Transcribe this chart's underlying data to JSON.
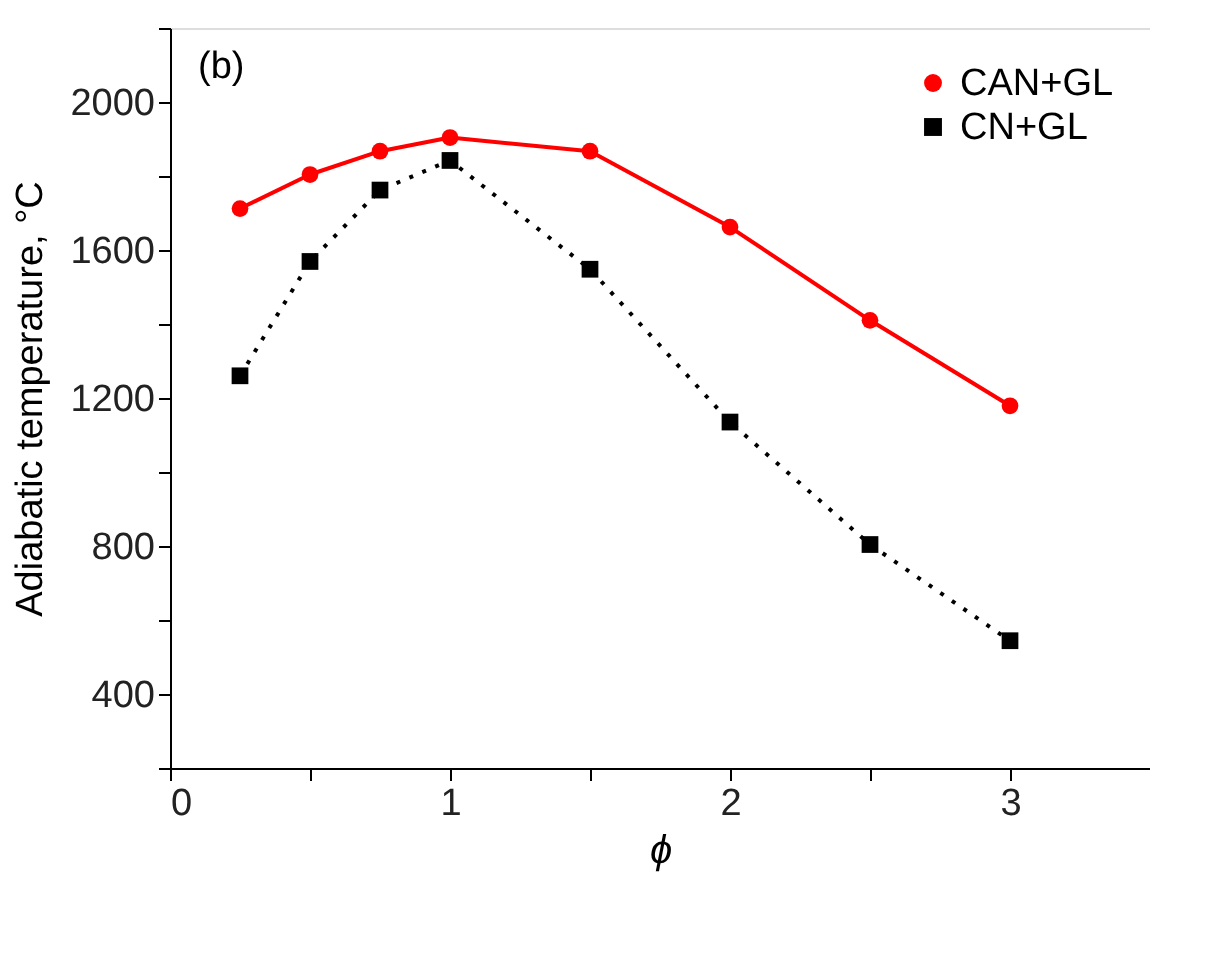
{
  "chart_data": {
    "type": "line",
    "xlabel": "ϕ",
    "ylabel": "Adiabatic temperature, °C",
    "x": [
      0.25,
      0.5,
      0.75,
      1,
      1.5,
      2,
      2.5,
      3
    ],
    "series": [
      {
        "name": "CAN+GL",
        "color": "#ff0000",
        "marker": "circle",
        "line_style": "solid",
        "values": [
          1712,
          1804,
          1867,
          1904,
          1867,
          1662,
          1410,
          1179
        ]
      },
      {
        "name": "CN+GL",
        "color": "#000000",
        "marker": "square",
        "line_style": "dotted",
        "values": [
          1260,
          1569,
          1762,
          1842,
          1548,
          1135,
          804,
          544
        ]
      }
    ],
    "xlim": [
      0,
      3.5
    ],
    "xticks": [
      0,
      {
        "value": 0.5,
        "label": null
      },
      1,
      {
        "value": 1.5,
        "label": null
      },
      2,
      {
        "value": 2.5,
        "label": null
      },
      3
    ],
    "ylim": [
      200,
      2200
    ],
    "yticks": [
      {
        "value": 200,
        "label": null
      },
      400,
      {
        "value": 600,
        "label": null
      },
      800,
      {
        "value": 1000,
        "label": null
      },
      1200,
      {
        "value": 1400,
        "label": null
      },
      1600,
      {
        "value": 1800,
        "label": null
      },
      2000,
      {
        "value": 2200,
        "label": null
      }
    ],
    "annotations": [
      "(b)"
    ],
    "grid": false,
    "legend": "top right"
  }
}
